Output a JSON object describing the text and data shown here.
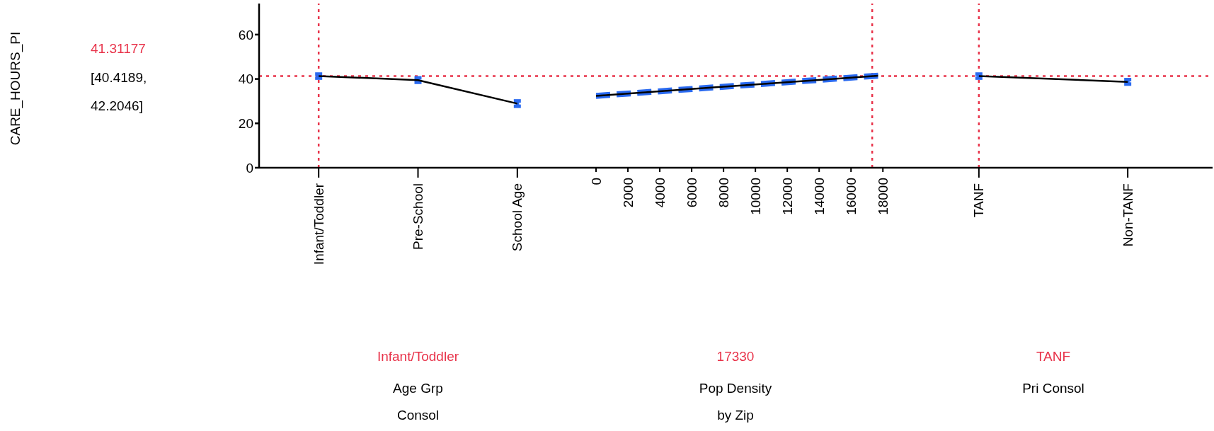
{
  "chart_data": [
    {
      "type": "line",
      "ylabel": "CARE_HOURS_PI",
      "xlabel": "Age Grp Consol",
      "categories": [
        "Infant/Toddler",
        "Pre-School",
        "School Age"
      ],
      "series": [
        {
          "color": "#000000",
          "values": [
            41.3,
            39.5,
            28.9
          ],
          "errors": [
            0.9,
            1,
            1.2
          ]
        }
      ],
      "ylim": [
        0,
        74
      ],
      "yticks": [
        0,
        20,
        40,
        60
      ],
      "ref_lines": [
        {
          "axis": "y",
          "value": 41.31177,
          "label": "41.31177",
          "color": "#e8334a",
          "line_style": "dotted"
        },
        {
          "axis": "x",
          "value": "Infant/Toddler",
          "label": "Infant/Toddler",
          "color": "#e8334a",
          "line_style": "dotted"
        }
      ],
      "annotations": [
        "[40.4189, 42.2046]"
      ]
    },
    {
      "type": "line",
      "xlabel": "Pop Density by Zip",
      "x": [
        0,
        17700
      ],
      "series": [
        {
          "color": "#2a6af0",
          "line_style": "dashed",
          "values": [
            31.6,
            40.7
          ]
        },
        {
          "color": "#2a6af0",
          "line_style": "dashed",
          "values": [
            33.2,
            42.3
          ]
        },
        {
          "color": "#000000",
          "values": [
            32.4,
            41.5
          ]
        }
      ],
      "xlim": [
        -1200,
        18700
      ],
      "xticks": [
        0,
        2000,
        4000,
        6000,
        8000,
        10000,
        12000,
        14000,
        16000,
        18000
      ],
      "ylim": [
        0,
        74
      ],
      "yticks": [
        0,
        20,
        40,
        60
      ],
      "tick_labels": "x",
      "ref_lines": [
        {
          "axis": "y",
          "value": 41.31177,
          "color": "#e8334a",
          "line_style": "dotted"
        },
        {
          "axis": "x",
          "value": 17330,
          "label": "17330",
          "color": "#e8334a",
          "line_style": "dotted"
        }
      ]
    },
    {
      "type": "line",
      "xlabel": "Pri Consol",
      "categories": [
        "TANF",
        "Non-TANF"
      ],
      "series": [
        {
          "color": "#000000",
          "values": [
            41.3,
            38.7
          ],
          "errors": [
            0.9,
            1
          ]
        }
      ],
      "ylim": [
        0,
        74
      ],
      "yticks": [
        0,
        20,
        40,
        60
      ],
      "tick_labels": "x",
      "ref_lines": [
        {
          "axis": "y",
          "value": 41.31177,
          "color": "#e8334a",
          "line_style": "dotted"
        },
        {
          "axis": "x",
          "value": "TANF",
          "label": "TANF",
          "color": "#e8334a",
          "line_style": "dotted"
        }
      ]
    }
  ]
}
